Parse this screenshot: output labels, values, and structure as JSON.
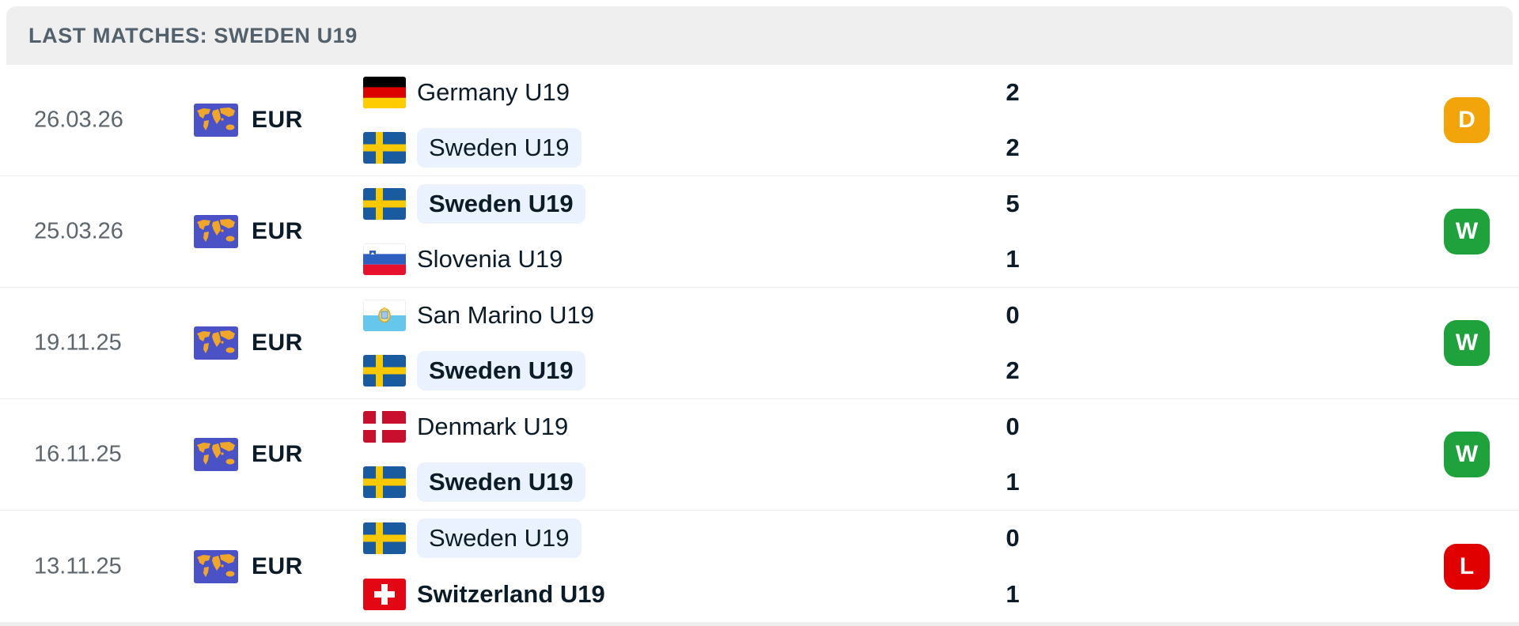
{
  "header": {
    "title": "LAST MATCHES: SWEDEN U19"
  },
  "colors": {
    "win": "#1fa23c",
    "draw": "#f2a50b",
    "loss": "#e00000",
    "highlight_pill": "#e9f2fe",
    "header_bg": "#efefef",
    "map_icon_bg": "#4a52c6",
    "map_icon_land": "#f0a62b"
  },
  "icons": {
    "competition": "world-map-icon"
  },
  "matches": [
    {
      "date": "26.03.26",
      "competition": "EUR",
      "home": {
        "name": "Germany U19",
        "flag": "germany",
        "score": "2",
        "bold": false,
        "highlight": false
      },
      "away": {
        "name": "Sweden U19",
        "flag": "sweden",
        "score": "2",
        "bold": false,
        "highlight": true
      },
      "result": "D"
    },
    {
      "date": "25.03.26",
      "competition": "EUR",
      "home": {
        "name": "Sweden U19",
        "flag": "sweden",
        "score": "5",
        "bold": true,
        "highlight": true
      },
      "away": {
        "name": "Slovenia U19",
        "flag": "slovenia",
        "score": "1",
        "bold": false,
        "highlight": false
      },
      "result": "W"
    },
    {
      "date": "19.11.25",
      "competition": "EUR",
      "home": {
        "name": "San Marino U19",
        "flag": "san-marino",
        "score": "0",
        "bold": false,
        "highlight": false
      },
      "away": {
        "name": "Sweden U19",
        "flag": "sweden",
        "score": "2",
        "bold": true,
        "highlight": true
      },
      "result": "W"
    },
    {
      "date": "16.11.25",
      "competition": "EUR",
      "home": {
        "name": "Denmark U19",
        "flag": "denmark",
        "score": "0",
        "bold": false,
        "highlight": false
      },
      "away": {
        "name": "Sweden U19",
        "flag": "sweden",
        "score": "1",
        "bold": true,
        "highlight": true
      },
      "result": "W"
    },
    {
      "date": "13.11.25",
      "competition": "EUR",
      "home": {
        "name": "Sweden U19",
        "flag": "sweden",
        "score": "0",
        "bold": false,
        "highlight": true
      },
      "away": {
        "name": "Switzerland U19",
        "flag": "switzerland",
        "score": "1",
        "bold": true,
        "highlight": false
      },
      "result": "L"
    }
  ]
}
